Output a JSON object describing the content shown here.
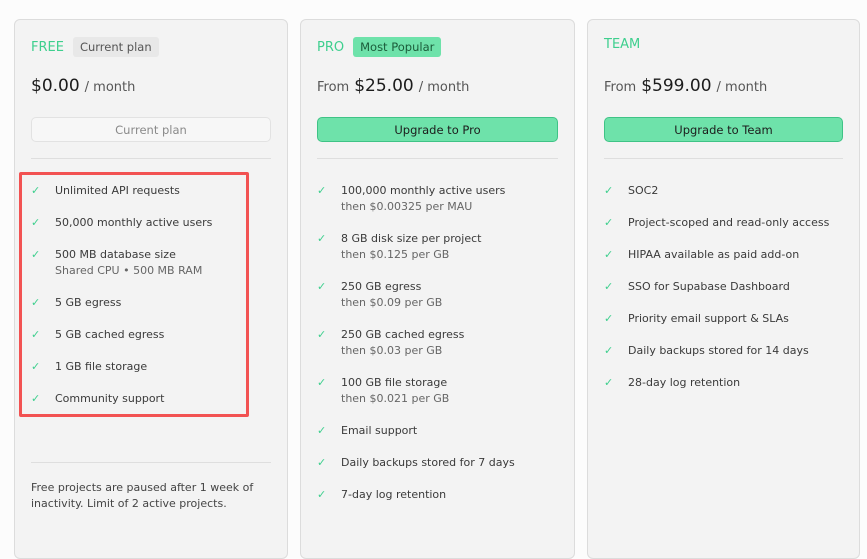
{
  "plans": [
    {
      "name": "FREE",
      "badge": "Current plan",
      "price_prefix": "",
      "price": "$0.00",
      "period": "/ month",
      "button": "Current plan",
      "features": [
        {
          "text": "Unlimited API requests"
        },
        {
          "text": "50,000 monthly active users"
        },
        {
          "text": "500 MB database size",
          "sub": "Shared CPU • 500 MB RAM"
        },
        {
          "text": "5 GB egress"
        },
        {
          "text": "5 GB cached egress"
        },
        {
          "text": "1 GB file storage"
        },
        {
          "text": "Community support"
        }
      ],
      "footnote": "Free projects are paused after 1 week of inactivity. Limit of 2 active projects."
    },
    {
      "name": "PRO",
      "badge": "Most Popular",
      "price_prefix": "From",
      "price": "$25.00",
      "period": "/ month",
      "button": "Upgrade to Pro",
      "features": [
        {
          "text": "100,000 monthly active users",
          "sub": "then $0.00325 per MAU"
        },
        {
          "text": "8 GB disk size per project",
          "sub": "then $0.125 per GB"
        },
        {
          "text": "250 GB egress",
          "sub": "then $0.09 per GB"
        },
        {
          "text": "250 GB cached egress",
          "sub": "then $0.03 per GB"
        },
        {
          "text": "100 GB file storage",
          "sub": "then $0.021 per GB"
        },
        {
          "text": "Email support"
        },
        {
          "text": "Daily backups stored for 7 days"
        },
        {
          "text": "7-day log retention"
        }
      ]
    },
    {
      "name": "TEAM",
      "price_prefix": "From",
      "price": "$599.00",
      "period": "/ month",
      "button": "Upgrade to Team",
      "features": [
        {
          "text": "SOC2"
        },
        {
          "text": "Project-scoped and read-only access"
        },
        {
          "text": "HIPAA available as paid add-on"
        },
        {
          "text": "SSO for Supabase Dashboard"
        },
        {
          "text": "Priority email support & SLAs"
        },
        {
          "text": "Daily backups stored for 14 days"
        },
        {
          "text": "28-day log retention"
        }
      ]
    }
  ],
  "colors": {
    "accent": "#3ecf8e",
    "button": "#6ee2aa",
    "highlight": "#f25252"
  }
}
